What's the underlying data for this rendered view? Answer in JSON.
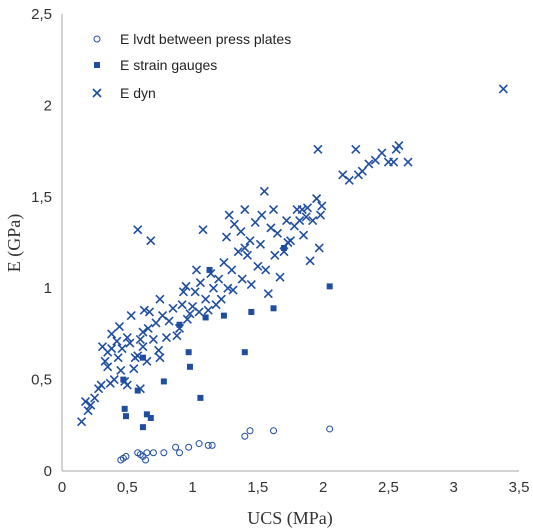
{
  "chart_data": {
    "type": "scatter",
    "title": "",
    "xlabel": "UCS (MPa)",
    "ylabel": "E (GPa)",
    "xlim": [
      0,
      3.5
    ],
    "ylim": [
      0,
      2.5
    ],
    "x_ticks": [
      "0",
      "0,5",
      "1",
      "1,5",
      "2",
      "2,5",
      "3",
      "3,5"
    ],
    "y_ticks": [
      "0",
      "0,5",
      "1",
      "1,5",
      "2",
      "2,5"
    ],
    "grid": false,
    "legend_position": "top-left",
    "series": [
      {
        "name": "E lvdt between press plates",
        "marker": "open-circle",
        "color": "#1f4ea0",
        "points": [
          [
            0.45,
            0.06
          ],
          [
            0.47,
            0.07
          ],
          [
            0.49,
            0.08
          ],
          [
            0.58,
            0.1
          ],
          [
            0.6,
            0.09
          ],
          [
            0.62,
            0.08
          ],
          [
            0.64,
            0.06
          ],
          [
            0.65,
            0.1
          ],
          [
            0.7,
            0.1
          ],
          [
            0.78,
            0.1
          ],
          [
            0.87,
            0.13
          ],
          [
            0.9,
            0.1
          ],
          [
            0.97,
            0.13
          ],
          [
            1.05,
            0.15
          ],
          [
            1.12,
            0.14
          ],
          [
            1.15,
            0.14
          ],
          [
            1.4,
            0.19
          ],
          [
            1.44,
            0.22
          ],
          [
            1.62,
            0.22
          ],
          [
            2.05,
            0.23
          ]
        ]
      },
      {
        "name": "E strain gauges",
        "marker": "filled-square",
        "color": "#1f4ea0",
        "points": [
          [
            0.47,
            0.5
          ],
          [
            0.48,
            0.34
          ],
          [
            0.49,
            0.3
          ],
          [
            0.58,
            0.44
          ],
          [
            0.62,
            0.24
          ],
          [
            0.62,
            0.62
          ],
          [
            0.65,
            0.31
          ],
          [
            0.68,
            0.29
          ],
          [
            0.78,
            0.49
          ],
          [
            0.9,
            0.8
          ],
          [
            0.97,
            0.65
          ],
          [
            0.98,
            0.57
          ],
          [
            1.06,
            0.4
          ],
          [
            1.1,
            0.84
          ],
          [
            1.13,
            1.1
          ],
          [
            1.24,
            0.85
          ],
          [
            1.4,
            0.65
          ],
          [
            1.45,
            0.87
          ],
          [
            1.62,
            0.89
          ],
          [
            1.7,
            1.22
          ],
          [
            2.05,
            1.01
          ]
        ]
      },
      {
        "name": "E dyn",
        "marker": "cross",
        "color": "#1f4ea0",
        "points": [
          [
            0.15,
            0.27
          ],
          [
            0.18,
            0.38
          ],
          [
            0.2,
            0.33
          ],
          [
            0.22,
            0.36
          ],
          [
            0.25,
            0.4
          ],
          [
            0.28,
            0.45
          ],
          [
            0.3,
            0.47
          ],
          [
            0.31,
            0.68
          ],
          [
            0.33,
            0.6
          ],
          [
            0.35,
            0.57
          ],
          [
            0.35,
            0.65
          ],
          [
            0.37,
            0.48
          ],
          [
            0.38,
            0.67
          ],
          [
            0.38,
            0.75
          ],
          [
            0.4,
            0.5
          ],
          [
            0.42,
            0.71
          ],
          [
            0.43,
            0.62
          ],
          [
            0.44,
            0.79
          ],
          [
            0.45,
            0.55
          ],
          [
            0.46,
            0.67
          ],
          [
            0.48,
            0.49
          ],
          [
            0.5,
            0.73
          ],
          [
            0.5,
            0.47
          ],
          [
            0.52,
            0.7
          ],
          [
            0.53,
            0.85
          ],
          [
            0.55,
            0.56
          ],
          [
            0.56,
            0.62
          ],
          [
            0.58,
            0.63
          ],
          [
            0.58,
            1.32
          ],
          [
            0.6,
            0.72
          ],
          [
            0.6,
            0.45
          ],
          [
            0.62,
            0.68
          ],
          [
            0.62,
            0.76
          ],
          [
            0.63,
            0.88
          ],
          [
            0.65,
            0.6
          ],
          [
            0.66,
            0.78
          ],
          [
            0.67,
            0.87
          ],
          [
            0.68,
            1.26
          ],
          [
            0.7,
            0.72
          ],
          [
            0.72,
            0.81
          ],
          [
            0.74,
            0.66
          ],
          [
            0.75,
            0.94
          ],
          [
            0.75,
            0.62
          ],
          [
            0.77,
            0.85
          ],
          [
            0.8,
            0.73
          ],
          [
            0.82,
            0.82
          ],
          [
            0.85,
            0.89
          ],
          [
            0.88,
            0.74
          ],
          [
            0.9,
            0.78
          ],
          [
            0.92,
            0.91
          ],
          [
            0.93,
            0.98
          ],
          [
            0.95,
            1.01
          ],
          [
            0.96,
            0.83
          ],
          [
            0.98,
            0.86
          ],
          [
            1.0,
            0.9
          ],
          [
            1.02,
            0.98
          ],
          [
            1.03,
            1.1
          ],
          [
            1.05,
            0.87
          ],
          [
            1.06,
            1.03
          ],
          [
            1.08,
            1.32
          ],
          [
            1.1,
            0.94
          ],
          [
            1.12,
            0.88
          ],
          [
            1.14,
            1.08
          ],
          [
            1.16,
            1.0
          ],
          [
            1.18,
            0.91
          ],
          [
            1.2,
            1.05
          ],
          [
            1.22,
            0.94
          ],
          [
            1.24,
            1.14
          ],
          [
            1.26,
            1.28
          ],
          [
            1.27,
            1.0
          ],
          [
            1.28,
            1.4
          ],
          [
            1.3,
            1.1
          ],
          [
            1.31,
            0.99
          ],
          [
            1.32,
            1.35
          ],
          [
            1.35,
            1.2
          ],
          [
            1.37,
            1.31
          ],
          [
            1.38,
            1.05
          ],
          [
            1.4,
            1.43
          ],
          [
            1.4,
            1.22
          ],
          [
            1.42,
            1.18
          ],
          [
            1.44,
            1.26
          ],
          [
            1.45,
            1.02
          ],
          [
            1.48,
            1.36
          ],
          [
            1.5,
            1.12
          ],
          [
            1.52,
            1.24
          ],
          [
            1.53,
            1.4
          ],
          [
            1.55,
            1.53
          ],
          [
            1.56,
            1.1
          ],
          [
            1.58,
            0.97
          ],
          [
            1.6,
            1.33
          ],
          [
            1.62,
            1.43
          ],
          [
            1.63,
            1.18
          ],
          [
            1.65,
            1.3
          ],
          [
            1.67,
            1.06
          ],
          [
            1.7,
            1.2
          ],
          [
            1.72,
            1.37
          ],
          [
            1.73,
            1.25
          ],
          [
            1.75,
            1.26
          ],
          [
            1.78,
            1.34
          ],
          [
            1.8,
            1.43
          ],
          [
            1.82,
            1.37
          ],
          [
            1.84,
            1.43
          ],
          [
            1.85,
            1.29
          ],
          [
            1.87,
            1.39
          ],
          [
            1.88,
            1.44
          ],
          [
            1.9,
            1.15
          ],
          [
            1.92,
            1.37
          ],
          [
            1.95,
            1.49
          ],
          [
            1.96,
            1.76
          ],
          [
            1.97,
            1.22
          ],
          [
            1.98,
            1.4
          ],
          [
            1.99,
            1.45
          ],
          [
            2.15,
            1.62
          ],
          [
            2.2,
            1.59
          ],
          [
            2.25,
            1.76
          ],
          [
            2.27,
            1.62
          ],
          [
            2.3,
            1.64
          ],
          [
            2.35,
            1.68
          ],
          [
            2.4,
            1.7
          ],
          [
            2.45,
            1.74
          ],
          [
            2.5,
            1.69
          ],
          [
            2.54,
            1.69
          ],
          [
            2.56,
            1.76
          ],
          [
            2.58,
            1.78
          ],
          [
            2.65,
            1.69
          ],
          [
            3.38,
            2.09
          ]
        ]
      }
    ]
  }
}
